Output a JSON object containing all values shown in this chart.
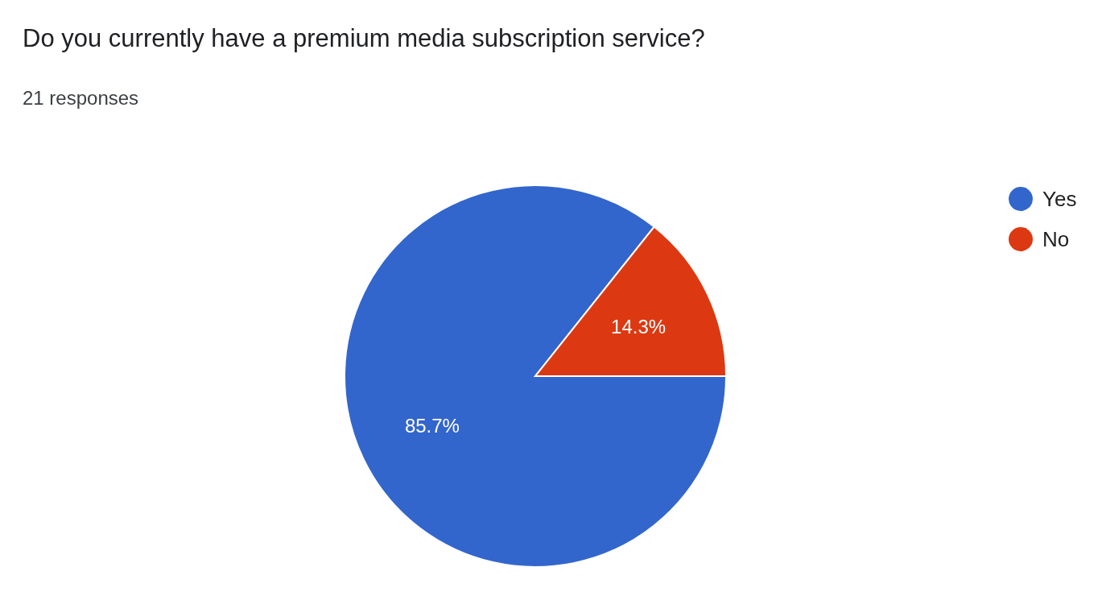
{
  "chart_data": {
    "type": "pie",
    "title": "Do you currently have a premium media subscription service?",
    "subtitle": "21 responses",
    "categories": [
      "Yes",
      "No"
    ],
    "values": [
      85.7,
      14.3
    ],
    "colors": [
      "#3366cc",
      "#dc3912"
    ],
    "value_labels": [
      "85.7%",
      "14.3%"
    ],
    "legend": "top right"
  }
}
